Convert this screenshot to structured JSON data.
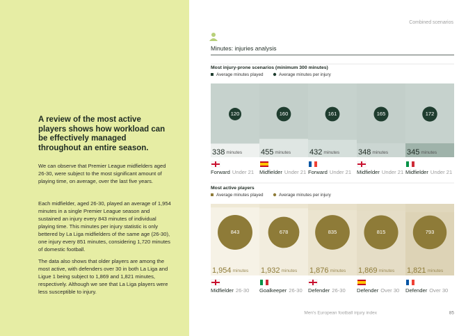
{
  "left": {
    "title": "A review of the most active players shows how workload can be effectively managed throughout an entire season.",
    "paragraphs": [
      "We can observe that Premier League midfielders aged 26-30, were subject to the most significant amount of playing time, on average, over the last five years.",
      "Each midfielder, aged 26-30, played an average of 1,954 minutes in a single Premier League season and sustained an injury every 843 minutes of individual playing time. This minutes per injury statistic is only bettered by La Liga midfielders of the same age (26-30), one injury every 851 minutes, considering 1,720 minutes of domestic football.",
      "The data also shows that older players are among the most active, with defenders over 30 in both La Liga and Ligue 1 being subject to 1,869 and 1,821 minutes, respectively. Although we see that La Liga players were less susceptible to injury."
    ]
  },
  "header": {
    "section": "Combined scenarios",
    "heading": "Minutes: injuries analysis"
  },
  "footer": {
    "text": "Men's European football injury index",
    "page": "85"
  },
  "injury_prone": {
    "title": "Most injury-prone scenarios (minimum 300 minutes)",
    "legend": [
      "Average minutes played",
      "Average minutes per injury"
    ],
    "unit": "minutes",
    "items": [
      {
        "played": 338,
        "per_injury": 120,
        "position": "Forward",
        "group": "Under 21"
      },
      {
        "played": 455,
        "per_injury": 160,
        "position": "Midfielder",
        "group": "Under 21"
      },
      {
        "played": 432,
        "per_injury": 161,
        "position": "Forward",
        "group": "Under 21"
      },
      {
        "played": 348,
        "per_injury": 165,
        "position": "Midfielder",
        "group": "Under 21"
      },
      {
        "played": 345,
        "per_injury": 172,
        "position": "Midfielder",
        "group": "Under 21"
      }
    ]
  },
  "most_active": {
    "title": "Most active players",
    "legend": [
      "Average minutes played",
      "Average minutes per injury"
    ],
    "unit": "minutes",
    "items": [
      {
        "played": 1954,
        "played_label": "1,954",
        "per_injury": 843,
        "position": "Midfielder",
        "group": "26-30"
      },
      {
        "played": 1932,
        "played_label": "1,932",
        "per_injury": 678,
        "position": "Goalkeeper",
        "group": "26-30"
      },
      {
        "played": 1876,
        "played_label": "1,876",
        "per_injury": 835,
        "position": "Defender",
        "group": "26-30"
      },
      {
        "played": 1869,
        "played_label": "1,869",
        "per_injury": 815,
        "position": "Defender",
        "group": "Over 30"
      },
      {
        "played": 1821,
        "played_label": "1,821",
        "per_injury": 793,
        "position": "Defender",
        "group": "Over 30"
      }
    ]
  }
}
